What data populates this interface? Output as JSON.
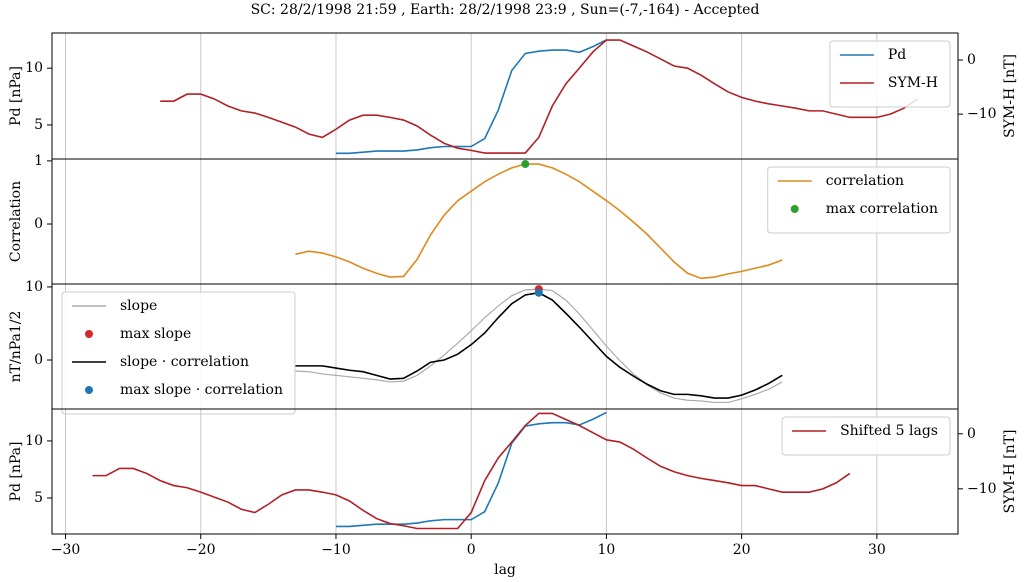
{
  "chart_data": [
    {
      "type": "line",
      "title": "SC: 28/2/1998 21:59 , Earth: 28/2/1998 23:9 , Sun=(-7,-164) - Accepted",
      "ylabel": "Pd [nPa]",
      "y2label": "SYM-H [nT]",
      "xlim": [
        -31,
        36
      ],
      "xticks": [
        -30,
        -20,
        -10,
        0,
        10,
        20,
        30
      ],
      "ylim": [
        2,
        13.1
      ],
      "yticks": [
        5,
        10
      ],
      "ytick_color": "#1f77b4",
      "y2lim": [
        -18.3,
        5
      ],
      "y2ticks": [
        {
          "value": -10,
          "label": "−10"
        },
        0
      ],
      "y2tick_color": "#b22027",
      "grid": true,
      "legend": "upper right",
      "series": [
        {
          "name": "Pd",
          "color": "#1f77b4",
          "style": "line",
          "x": [
            -10,
            -9,
            -8,
            -7,
            -6,
            -5,
            -4,
            -3,
            -2,
            -1,
            0,
            1,
            2,
            3,
            4,
            5,
            6,
            7,
            8,
            9,
            10
          ],
          "values": [
            2.5,
            2.5,
            2.6,
            2.7,
            2.7,
            2.7,
            2.8,
            3.0,
            3.1,
            3.1,
            3.1,
            3.8,
            6.3,
            9.8,
            11.3,
            11.5,
            11.6,
            11.6,
            11.4,
            11.9,
            12.5
          ]
        },
        {
          "name": "SYM-H",
          "color": "#b22027",
          "style": "line",
          "axis": "y2",
          "x": [
            -23,
            -22,
            -21,
            -20,
            -19,
            -18,
            -17,
            -16,
            -15,
            -14,
            -13,
            -12,
            -11,
            -10,
            -9,
            -8,
            -7,
            -6,
            -5,
            -4,
            -3,
            -2,
            -1,
            0,
            1,
            2,
            3,
            4,
            5,
            6,
            7,
            8,
            9,
            10,
            11,
            12,
            13,
            14,
            15,
            16,
            17,
            18,
            19,
            20,
            21,
            22,
            23,
            24,
            25,
            26,
            27,
            28,
            29,
            30,
            31,
            32,
            33
          ],
          "values": [
            -7.6,
            -7.6,
            -6.3,
            -6.3,
            -7.2,
            -8.5,
            -9.4,
            -9.8,
            -10.6,
            -11.5,
            -12.4,
            -13.7,
            -14.3,
            -12.8,
            -11.1,
            -10.2,
            -10.2,
            -10.6,
            -11.1,
            -12.2,
            -13.9,
            -15.4,
            -16.3,
            -16.7,
            -17.2,
            -17.2,
            -17.2,
            -17.2,
            -14.3,
            -8.5,
            -4.4,
            -1.5,
            1.5,
            3.7,
            3.7,
            2.6,
            1.5,
            0.2,
            -1.1,
            -1.5,
            -2.8,
            -4.4,
            -5.9,
            -6.9,
            -7.6,
            -8.1,
            -8.5,
            -8.9,
            -9.4,
            -9.4,
            -10,
            -10.6,
            -10.6,
            -10.6,
            -10,
            -8.9,
            -7.2
          ]
        }
      ]
    },
    {
      "type": "line",
      "ylabel": "Correlation",
      "xlim": [
        -31,
        36
      ],
      "xticks": [
        -30,
        -20,
        -10,
        0,
        10,
        20,
        30
      ],
      "ylim": [
        -0.95,
        1.03
      ],
      "yticks": [
        0,
        1
      ],
      "ytick_color": "#e08a1e",
      "grid": true,
      "legend": "upper right",
      "series": [
        {
          "name": "correlation",
          "color": "#e08a1e",
          "style": "line",
          "x": [
            -13,
            -12,
            -11,
            -10,
            -9,
            -8,
            -7,
            -6,
            -5,
            -4,
            -3,
            -2,
            -1,
            0,
            1,
            2,
            3,
            4,
            5,
            6,
            7,
            8,
            9,
            10,
            11,
            12,
            13,
            14,
            15,
            16,
            17,
            18,
            19,
            20,
            21,
            22,
            23
          ],
          "values": [
            -0.48,
            -0.43,
            -0.46,
            -0.52,
            -0.6,
            -0.7,
            -0.78,
            -0.84,
            -0.83,
            -0.56,
            -0.17,
            0.14,
            0.37,
            0.52,
            0.67,
            0.79,
            0.89,
            0.95,
            0.95,
            0.89,
            0.79,
            0.67,
            0.52,
            0.37,
            0.21,
            0.03,
            -0.16,
            -0.38,
            -0.6,
            -0.78,
            -0.86,
            -0.84,
            -0.79,
            -0.75,
            -0.7,
            -0.65,
            -0.57
          ]
        },
        {
          "name": "max correlation",
          "color": "#2ca02c",
          "style": "point",
          "x": [
            4
          ],
          "values": [
            0.95
          ]
        }
      ]
    },
    {
      "type": "line",
      "ylabel": "nT/nPa1/2",
      "xlim": [
        -31,
        36
      ],
      "xticks": [
        -30,
        -20,
        -10,
        0,
        10,
        20,
        30
      ],
      "ylim": [
        -6.7,
        10.4
      ],
      "yticks": [
        0,
        10
      ],
      "ytick_color": "#000000",
      "grid": true,
      "legend": "upper left",
      "series": [
        {
          "name": "slope",
          "color": "#aaaaaa",
          "style": "line",
          "x": [
            -13,
            -12,
            -11,
            -10,
            -9,
            -8,
            -7,
            -6,
            -5,
            -4,
            -3,
            -2,
            -1,
            0,
            1,
            2,
            3,
            4,
            5,
            6,
            7,
            8,
            9,
            10,
            11,
            12,
            13,
            14,
            15,
            16,
            17,
            18,
            19,
            20,
            21,
            22,
            23
          ],
          "values": [
            -1.5,
            -1.6,
            -1.9,
            -2.1,
            -2.3,
            -2.5,
            -2.7,
            -3.0,
            -2.9,
            -2.1,
            -0.8,
            0.7,
            2.3,
            4.0,
            5.8,
            7.4,
            8.8,
            9.6,
            9.7,
            9.5,
            8.2,
            6.3,
            4.1,
            1.9,
            -0.1,
            -1.9,
            -3.4,
            -4.5,
            -5.2,
            -5.5,
            -5.6,
            -5.8,
            -5.8,
            -5.3,
            -4.7,
            -4.0,
            -3.0
          ]
        },
        {
          "name": "max slope",
          "color": "#d62728",
          "style": "point",
          "x": [
            5
          ],
          "values": [
            9.7
          ]
        },
        {
          "name": "slope · correlation",
          "color": "#000000",
          "style": "line",
          "x": [
            -13,
            -12,
            -11,
            -10,
            -9,
            -8,
            -7,
            -6,
            -5,
            -4,
            -3,
            -2,
            -1,
            0,
            1,
            2,
            3,
            4,
            5,
            6,
            7,
            8,
            9,
            10,
            11,
            12,
            13,
            14,
            15,
            16,
            17,
            18,
            19,
            20,
            21,
            22,
            23
          ],
          "values": [
            -0.8,
            -0.8,
            -0.8,
            -1.1,
            -1.4,
            -1.6,
            -2.1,
            -2.6,
            -2.5,
            -1.5,
            -0.3,
            0,
            0.8,
            2.1,
            3.7,
            5.8,
            7.7,
            8.9,
            9.2,
            8.2,
            6.4,
            4.5,
            2.5,
            0.5,
            -1.0,
            -2.2,
            -3.3,
            -4.2,
            -4.7,
            -4.7,
            -4.9,
            -5.2,
            -5.2,
            -4.8,
            -4.1,
            -3.2,
            -2.1
          ]
        },
        {
          "name": "max slope · correlation",
          "color": "#1f77b4",
          "style": "point",
          "x": [
            5
          ],
          "values": [
            9.2
          ]
        }
      ]
    },
    {
      "type": "line",
      "ylabel": "Pd [nPa]",
      "y2label": "SYM-H [nT]",
      "xlabel": "lag",
      "xlim": [
        -31,
        36
      ],
      "xticks": [
        {
          "value": -30,
          "label": "−30"
        },
        {
          "value": -20,
          "label": "−20"
        },
        {
          "value": -10,
          "label": "−10"
        },
        0,
        10,
        20,
        30
      ],
      "ylim": [
        1.84,
        12.8
      ],
      "yticks": [
        5,
        10
      ],
      "ytick_color": "#1f77b4",
      "y2lim": [
        -18.2,
        4.5
      ],
      "y2ticks": [
        {
          "value": -10,
          "label": "−10"
        },
        0
      ],
      "y2tick_color": "#b22027",
      "grid": true,
      "legend": "upper right",
      "series": [
        {
          "color": "#1f77b4",
          "style": "line",
          "x": [
            -10,
            -9,
            -8,
            -7,
            -6,
            -5,
            -4,
            -3,
            -2,
            -1,
            0,
            1,
            2,
            3,
            4,
            5,
            6,
            7,
            8,
            9,
            10
          ],
          "values": [
            2.5,
            2.5,
            2.6,
            2.7,
            2.7,
            2.7,
            2.8,
            3.0,
            3.1,
            3.1,
            3.1,
            3.8,
            6.3,
            9.8,
            11.3,
            11.5,
            11.6,
            11.6,
            11.4,
            11.9,
            12.5
          ]
        },
        {
          "name": "Shifted 5 lags",
          "color": "#b22027",
          "style": "line",
          "axis": "y2",
          "x": [
            -28,
            -27,
            -26,
            -25,
            -24,
            -23,
            -22,
            -21,
            -20,
            -19,
            -18,
            -17,
            -16,
            -15,
            -14,
            -13,
            -12,
            -11,
            -10,
            -9,
            -8,
            -7,
            -6,
            -5,
            -4,
            -3,
            -2,
            -1,
            0,
            1,
            2,
            3,
            4,
            5,
            6,
            7,
            8,
            9,
            10,
            11,
            12,
            13,
            14,
            15,
            16,
            17,
            18,
            19,
            20,
            21,
            22,
            23,
            24,
            25,
            26,
            27,
            28
          ],
          "values": [
            -7.6,
            -7.6,
            -6.3,
            -6.3,
            -7.2,
            -8.5,
            -9.4,
            -9.8,
            -10.6,
            -11.5,
            -12.4,
            -13.7,
            -14.3,
            -12.8,
            -11.1,
            -10.2,
            -10.2,
            -10.6,
            -11.1,
            -12.2,
            -13.9,
            -15.4,
            -16.3,
            -16.7,
            -17.2,
            -17.2,
            -17.2,
            -17.2,
            -14.3,
            -8.5,
            -4.4,
            -1.5,
            1.5,
            3.7,
            3.7,
            2.6,
            1.5,
            0.2,
            -1.1,
            -1.5,
            -2.8,
            -4.4,
            -5.9,
            -6.9,
            -7.6,
            -8.1,
            -8.5,
            -8.9,
            -9.4,
            -9.4,
            -10,
            -10.6,
            -10.6,
            -10.6,
            -10,
            -8.9,
            -7.2
          ]
        }
      ]
    }
  ]
}
